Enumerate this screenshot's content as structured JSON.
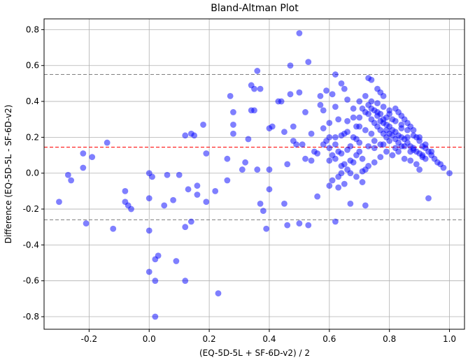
{
  "chart_data": {
    "type": "scatter",
    "title": "Bland-Altman Plot",
    "xlabel": "(EQ-5D-5L + SF-6D-v2) / 2",
    "ylabel": "Difference (EQ-5D-5L - SF-6D-v2)",
    "xlim": [
      -0.35,
      1.05
    ],
    "ylim": [
      -0.87,
      0.86
    ],
    "xticks": [
      "-0.2",
      "0.0",
      "0.2",
      "0.4",
      "0.6",
      "0.8",
      "1.0"
    ],
    "xtick_values": [
      -0.2,
      0.0,
      0.2,
      0.4,
      0.6,
      0.8,
      1.0
    ],
    "yticks": [
      "-0.8",
      "-0.6",
      "-0.4",
      "-0.2",
      "0.0",
      "0.2",
      "0.4",
      "0.6",
      "0.8"
    ],
    "ytick_values": [
      -0.8,
      -0.6,
      -0.4,
      -0.2,
      0.0,
      0.2,
      0.4,
      0.6,
      0.8
    ],
    "grid": true,
    "point_color": "#0000ff",
    "point_opacity": 0.5,
    "reference_lines": [
      {
        "kind": "mean",
        "y": 0.145,
        "color": "#ff0000",
        "style": "dashed"
      },
      {
        "kind": "upper_limit",
        "y": 0.55,
        "color": "#808080",
        "style": "dashed"
      },
      {
        "kind": "lower_limit",
        "y": -0.26,
        "color": "#808080",
        "style": "dashed"
      }
    ],
    "points": [
      [
        -0.3,
        -0.16
      ],
      [
        -0.27,
        -0.01
      ],
      [
        -0.26,
        -0.04
      ],
      [
        -0.22,
        0.11
      ],
      [
        -0.22,
        0.03
      ],
      [
        -0.21,
        -0.28
      ],
      [
        -0.19,
        0.09
      ],
      [
        -0.14,
        0.17
      ],
      [
        -0.12,
        -0.31
      ],
      [
        -0.08,
        -0.1
      ],
      [
        -0.08,
        -0.16
      ],
      [
        -0.07,
        -0.18
      ],
      [
        -0.06,
        -0.2
      ],
      [
        0.0,
        0.0
      ],
      [
        0.0,
        -0.14
      ],
      [
        0.0,
        -0.32
      ],
      [
        0.0,
        -0.55
      ],
      [
        0.01,
        -0.02
      ],
      [
        0.02,
        -0.48
      ],
      [
        0.02,
        -0.6
      ],
      [
        0.02,
        -0.8
      ],
      [
        0.03,
        -0.46
      ],
      [
        0.05,
        -0.18
      ],
      [
        0.06,
        -0.01
      ],
      [
        0.08,
        -0.15
      ],
      [
        0.09,
        -0.49
      ],
      [
        0.1,
        -0.01
      ],
      [
        0.12,
        -0.6
      ],
      [
        0.12,
        0.21
      ],
      [
        0.12,
        -0.3
      ],
      [
        0.13,
        -0.09
      ],
      [
        0.14,
        -0.27
      ],
      [
        0.14,
        0.22
      ],
      [
        0.15,
        0.21
      ],
      [
        0.16,
        -0.07
      ],
      [
        0.16,
        -0.12
      ],
      [
        0.18,
        0.27
      ],
      [
        0.19,
        -0.16
      ],
      [
        0.19,
        0.11
      ],
      [
        0.22,
        -0.1
      ],
      [
        0.23,
        -0.67
      ],
      [
        0.26,
        -0.04
      ],
      [
        0.26,
        0.08
      ],
      [
        0.27,
        0.43
      ],
      [
        0.28,
        0.34
      ],
      [
        0.28,
        0.27
      ],
      [
        0.28,
        0.22
      ],
      [
        0.31,
        0.02
      ],
      [
        0.32,
        0.06
      ],
      [
        0.33,
        0.19
      ],
      [
        0.34,
        0.35
      ],
      [
        0.34,
        0.49
      ],
      [
        0.35,
        0.47
      ],
      [
        0.35,
        0.35
      ],
      [
        0.36,
        0.02
      ],
      [
        0.36,
        0.57
      ],
      [
        0.37,
        -0.17
      ],
      [
        0.37,
        0.47
      ],
      [
        0.38,
        -0.21
      ],
      [
        0.39,
        -0.31
      ],
      [
        0.4,
        0.02
      ],
      [
        0.4,
        0.25
      ],
      [
        0.4,
        -0.09
      ],
      [
        0.41,
        0.26
      ],
      [
        0.43,
        0.4
      ],
      [
        0.44,
        0.4
      ],
      [
        0.45,
        0.23
      ],
      [
        0.45,
        -0.17
      ],
      [
        0.46,
        0.05
      ],
      [
        0.46,
        -0.29
      ],
      [
        0.47,
        0.6
      ],
      [
        0.47,
        0.44
      ],
      [
        0.48,
        0.26
      ],
      [
        0.48,
        0.18
      ],
      [
        0.49,
        0.16
      ],
      [
        0.5,
        0.78
      ],
      [
        0.5,
        0.45
      ],
      [
        0.5,
        -0.28
      ],
      [
        0.51,
        0.16
      ],
      [
        0.52,
        0.34
      ],
      [
        0.52,
        0.08
      ],
      [
        0.53,
        0.62
      ],
      [
        0.53,
        -0.29
      ],
      [
        0.54,
        0.22
      ],
      [
        0.55,
        0.12
      ],
      [
        0.56,
        -0.13
      ],
      [
        0.57,
        0.38
      ],
      [
        0.57,
        0.43
      ],
      [
        0.58,
        0.25
      ],
      [
        0.58,
        0.35
      ],
      [
        0.59,
        0.18
      ],
      [
        0.59,
        0.46
      ],
      [
        0.6,
        0.2
      ],
      [
        0.6,
        0.28
      ],
      [
        0.6,
        0.07
      ],
      [
        0.61,
        -0.04
      ],
      [
        0.61,
        0.44
      ],
      [
        0.62,
        0.55
      ],
      [
        0.62,
        0.16
      ],
      [
        0.62,
        -0.27
      ],
      [
        0.62,
        0.37
      ],
      [
        0.63,
        0.3
      ],
      [
        0.63,
        -0.02
      ],
      [
        0.64,
        0.5
      ],
      [
        0.64,
        0.11
      ],
      [
        0.65,
        0.22
      ],
      [
        0.65,
        0.47
      ],
      [
        0.66,
        0.29
      ],
      [
        0.66,
        0.41
      ],
      [
        0.66,
        0.02
      ],
      [
        0.67,
        -0.17
      ],
      [
        0.67,
        0.15
      ],
      [
        0.68,
        0.31
      ],
      [
        0.68,
        0.06
      ],
      [
        0.69,
        0.26
      ],
      [
        0.69,
        0.19
      ],
      [
        0.7,
        0.4
      ],
      [
        0.7,
        0.12
      ],
      [
        0.71,
        0.36
      ],
      [
        0.71,
        -0.05
      ],
      [
        0.72,
        0.43
      ],
      [
        0.72,
        0.02
      ],
      [
        0.72,
        -0.18
      ],
      [
        0.73,
        0.33
      ],
      [
        0.73,
        0.53
      ],
      [
        0.74,
        0.52
      ],
      [
        0.74,
        0.3
      ],
      [
        0.74,
        0.22
      ],
      [
        0.75,
        0.28
      ],
      [
        0.75,
        0.06
      ],
      [
        0.76,
        0.47
      ],
      [
        0.76,
        0.26
      ],
      [
        0.77,
        0.45
      ],
      [
        0.77,
        0.24
      ],
      [
        0.78,
        0.43
      ],
      [
        0.78,
        0.22
      ],
      [
        0.78,
        0.16
      ],
      [
        0.79,
        0.31
      ],
      [
        0.79,
        0.2
      ],
      [
        0.8,
        0.18
      ],
      [
        0.81,
        0.1
      ],
      [
        0.81,
        0.3
      ],
      [
        0.82,
        0.36
      ],
      [
        0.82,
        0.14
      ],
      [
        0.83,
        0.34
      ],
      [
        0.83,
        0.12
      ],
      [
        0.84,
        0.32
      ],
      [
        0.84,
        0.25
      ],
      [
        0.85,
        0.3
      ],
      [
        0.85,
        0.08
      ],
      [
        0.86,
        0.28
      ],
      [
        0.86,
        0.2
      ],
      [
        0.87,
        0.26
      ],
      [
        0.87,
        0.07
      ],
      [
        0.88,
        0.24
      ],
      [
        0.88,
        0.13
      ],
      [
        0.89,
        0.2
      ],
      [
        0.89,
        0.05
      ],
      [
        0.9,
        0.2
      ],
      [
        0.9,
        0.02
      ],
      [
        0.91,
        0.15
      ],
      [
        0.91,
        0.1
      ],
      [
        0.92,
        0.16
      ],
      [
        0.92,
        0.08
      ],
      [
        0.93,
        -0.14
      ],
      [
        0.93,
        0.12
      ],
      [
        0.94,
        0.1
      ],
      [
        0.95,
        0.08
      ],
      [
        0.96,
        0.06
      ],
      [
        0.97,
        0.05
      ],
      [
        0.98,
        0.03
      ],
      [
        1.0,
        0.0
      ],
      [
        0.73,
        0.38
      ],
      [
        0.75,
        0.35
      ],
      [
        0.77,
        0.33
      ],
      [
        0.79,
        0.27
      ],
      [
        0.81,
        0.24
      ],
      [
        0.83,
        0.21
      ],
      [
        0.85,
        0.19
      ],
      [
        0.87,
        0.15
      ],
      [
        0.89,
        0.12
      ],
      [
        0.91,
        0.09
      ],
      [
        0.76,
        0.32
      ],
      [
        0.78,
        0.3
      ],
      [
        0.8,
        0.26
      ],
      [
        0.82,
        0.23
      ],
      [
        0.84,
        0.2
      ],
      [
        0.86,
        0.17
      ],
      [
        0.88,
        0.14
      ],
      [
        0.9,
        0.11
      ],
      [
        0.77,
        0.29
      ],
      [
        0.79,
        0.24
      ],
      [
        0.81,
        0.21
      ],
      [
        0.83,
        0.17
      ],
      [
        0.85,
        0.15
      ],
      [
        0.87,
        0.12
      ],
      [
        0.72,
        0.34
      ],
      [
        0.74,
        0.36
      ],
      [
        0.76,
        0.34
      ],
      [
        0.78,
        0.28
      ],
      [
        0.8,
        0.22
      ],
      [
        0.82,
        0.19
      ],
      [
        0.84,
        0.15
      ],
      [
        0.8,
        0.33
      ],
      [
        0.82,
        0.29
      ],
      [
        0.84,
        0.27
      ],
      [
        0.86,
        0.24
      ],
      [
        0.88,
        0.21
      ],
      [
        0.9,
        0.18
      ],
      [
        0.92,
        0.14
      ],
      [
        0.94,
        0.12
      ],
      [
        0.64,
        0.21
      ],
      [
        0.66,
        0.23
      ],
      [
        0.68,
        0.2
      ],
      [
        0.7,
        0.17
      ],
      [
        0.7,
        0.26
      ],
      [
        0.72,
        0.24
      ],
      [
        0.66,
        0.13
      ],
      [
        0.64,
        0.04
      ],
      [
        0.62,
        0.08
      ],
      [
        0.6,
        -0.07
      ],
      [
        0.63,
        -0.08
      ],
      [
        0.65,
        -0.06
      ],
      [
        0.67,
        0.0
      ],
      [
        0.69,
        -0.02
      ],
      [
        0.71,
        0.01
      ],
      [
        0.73,
        0.04
      ],
      [
        0.75,
        0.14
      ],
      [
        0.77,
        0.09
      ],
      [
        0.79,
        0.12
      ],
      [
        0.62,
        0.2
      ],
      [
        0.6,
        0.14
      ],
      [
        0.64,
        0.0
      ],
      [
        0.68,
        0.36
      ],
      [
        0.7,
        0.31
      ],
      [
        0.74,
        0.4
      ],
      [
        0.76,
        0.39
      ],
      [
        0.78,
        0.37
      ],
      [
        0.8,
        0.35
      ],
      [
        0.58,
        0.16
      ],
      [
        0.56,
        0.11
      ],
      [
        0.54,
        0.07
      ],
      [
        0.61,
        0.1
      ],
      [
        0.63,
        0.12
      ],
      [
        0.65,
        0.05
      ],
      [
        0.67,
        0.07
      ],
      [
        0.69,
        0.1
      ],
      [
        0.71,
        0.08
      ],
      [
        0.73,
        0.15
      ],
      [
        0.75,
        0.18
      ],
      [
        0.77,
        0.16
      ]
    ]
  }
}
